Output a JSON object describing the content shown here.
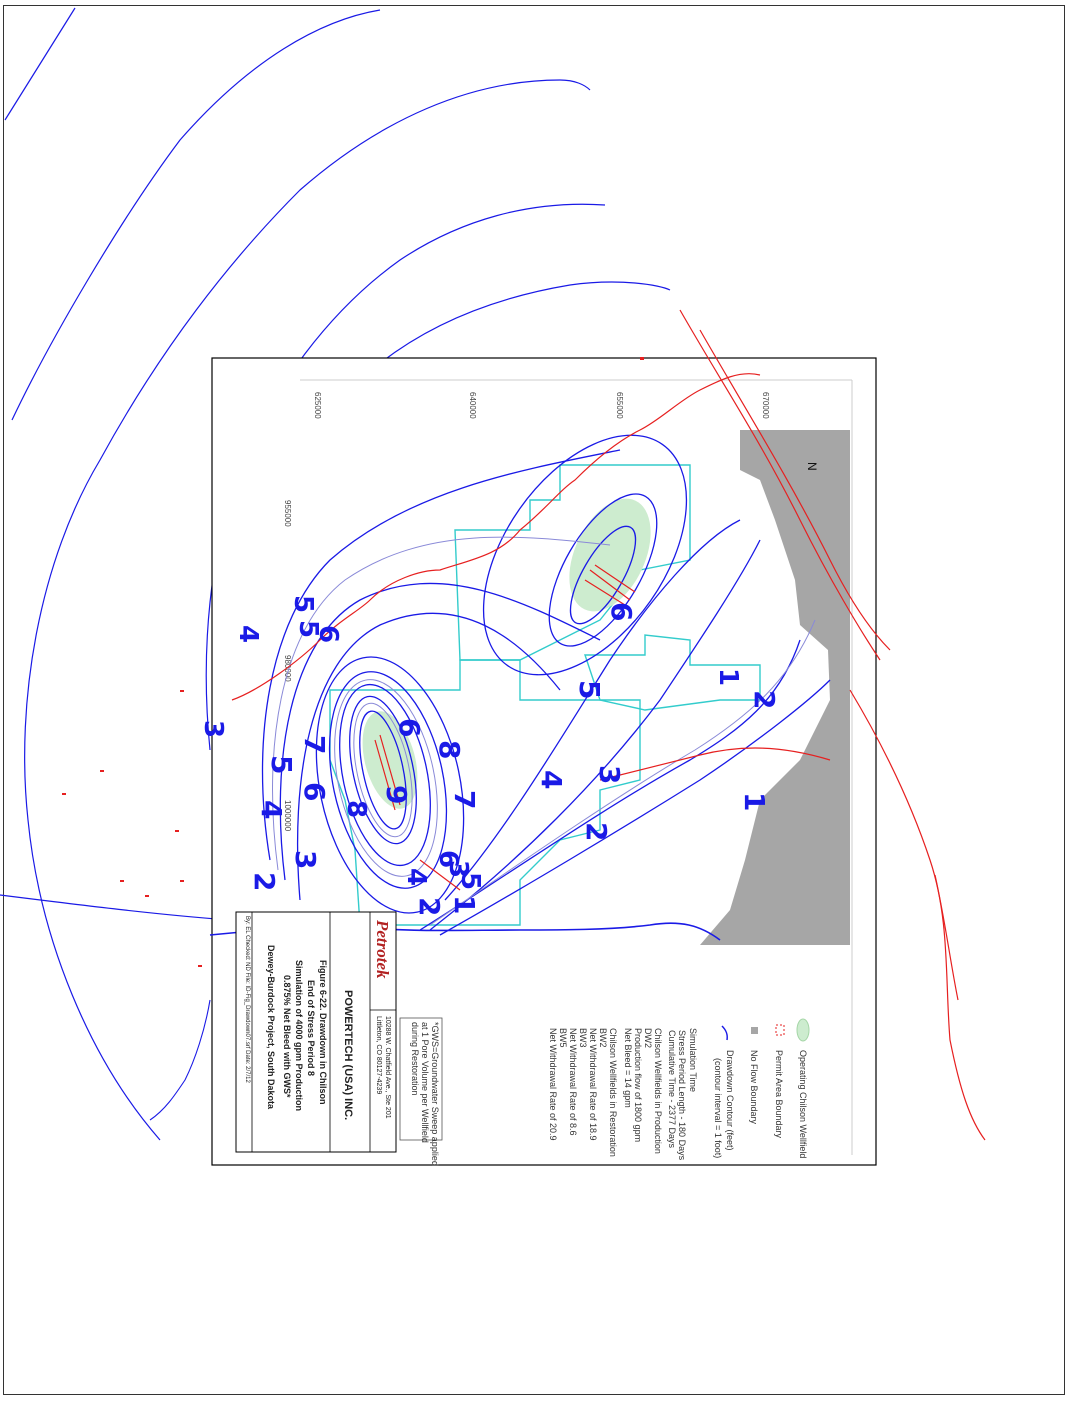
{
  "colors": {
    "contour": "#1a1ae6",
    "contour_light": "#8a8ad8",
    "boundary_red": "#e62020",
    "wellfield": "#33cccc",
    "no_flow": "#a6a6a6",
    "wellfield_fill": "#cdeccf"
  },
  "map": {
    "axis_ticks": [
      "625000",
      "640000",
      "655000",
      "670000",
      "955000",
      "980000",
      "1000000"
    ],
    "north_arrow": "N",
    "contour_labels": [
      "1",
      "2",
      "3",
      "4",
      "5",
      "6",
      "7",
      "8",
      "9"
    ],
    "labels_outer": [
      {
        "text": "1"
      },
      {
        "text": "2"
      },
      {
        "text": "3"
      },
      {
        "text": "4"
      },
      {
        "text": "5"
      },
      {
        "text": "6"
      },
      {
        "text": "7"
      },
      {
        "text": "1"
      },
      {
        "text": "2"
      },
      {
        "text": "3"
      },
      {
        "text": "4"
      },
      {
        "text": "5"
      },
      {
        "text": "6"
      },
      {
        "text": "7"
      },
      {
        "text": "8"
      },
      {
        "text": "9"
      },
      {
        "text": "6"
      },
      {
        "text": "8"
      },
      {
        "text": "5"
      },
      {
        "text": "4"
      },
      {
        "text": "3"
      },
      {
        "text": "2"
      },
      {
        "text": "1"
      },
      {
        "text": "6"
      },
      {
        "text": "5"
      },
      {
        "text": "3"
      },
      {
        "text": "2"
      },
      {
        "text": "1"
      },
      {
        "text": "4"
      },
      {
        "text": "5"
      },
      {
        "text": "6"
      }
    ]
  },
  "legend": {
    "items": [
      {
        "label": "Operating Chilson Wellfield",
        "icon": "wellfield-swatch-icon"
      },
      {
        "label": "Permit Area Boundary",
        "icon": "boundary-swatch-icon"
      },
      {
        "label": "No Flow Boundary",
        "icon": "no-flow-swatch-icon"
      },
      {
        "label": "Drawdown Contour (feet)",
        "icon": "contour-line-icon"
      },
      {
        "label": "(contour interval = 1 foot)",
        "icon": ""
      }
    ],
    "simulation": [
      "Simulation Time",
      "Stress Period Length - 180 Days",
      "Cumulative Time - 2377 Days",
      "Chilson Wellfields in Production",
      "DW2",
      "Production flow of 1800 gpm",
      "Net Bleed = 14 gpm",
      "Chilson Wellfields in Restoration",
      "BW2",
      "Net Withdrawal Rate of 18.9",
      "BW3",
      "Net Withdrawal Rate of 8.6",
      "BW5",
      "Net Withdrawal Rate of 20.9"
    ],
    "note": [
      "*GWS=Groundwater Sweep applied",
      "at 1 Pore Volume per Wellfield",
      "during Restoration"
    ]
  },
  "title_block": {
    "logo": "Petrotek",
    "address": [
      "10288 W. Chatfield Ave., Ste 201",
      "Littleton, CO 80127-4239"
    ],
    "company": "POWERTECH (USA) INC.",
    "figure_lines": [
      "Figure 6-22. Drawdown in Chilson",
      "End of Stress Period 8",
      "Simulation of 4000 gpm Production",
      "0.875% Net Bleed with GWS*",
      "Dewey-Burdock Project, South Dakota"
    ],
    "footer": "By: EL  Checked: ND  File: ID-Fig_Drawdown07.srf  Date: 2/7/12"
  }
}
